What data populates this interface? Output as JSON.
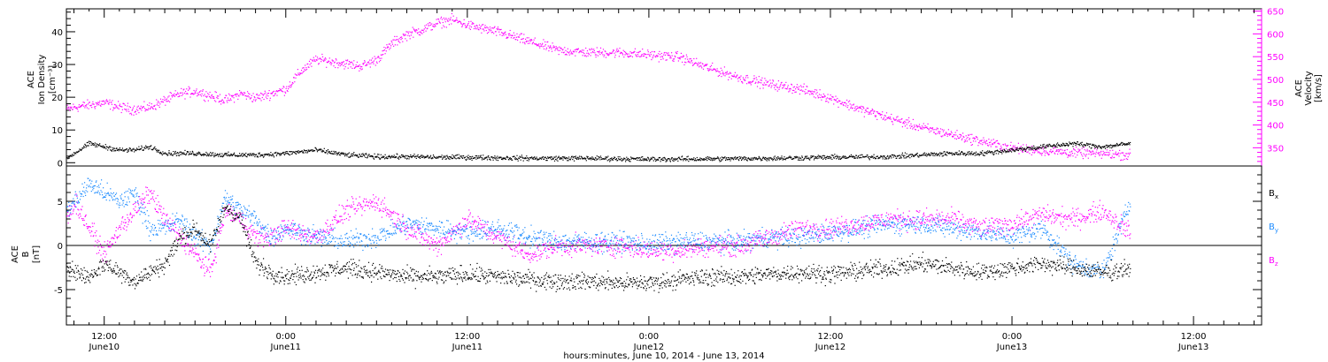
{
  "figure": {
    "xlabel": "hours:minutes, June 10, 2014 - June 13, 2014",
    "x_ticks": [
      {
        "time": "12:00",
        "date": "June10",
        "hours": 12
      },
      {
        "time": "0:00",
        "date": "June11",
        "hours": 24
      },
      {
        "time": "12:00",
        "date": "June11",
        "hours": 36
      },
      {
        "time": "0:00",
        "date": "June12",
        "hours": 48
      },
      {
        "time": "12:00",
        "date": "June12",
        "hours": 60
      },
      {
        "time": "0:00",
        "date": "June13",
        "hours": 72
      },
      {
        "time": "12:00",
        "date": "June13",
        "hours": 84
      }
    ],
    "x_range_hours_since_june10_0000": [
      9.5,
      88.5
    ],
    "data_end_hours": 79.8,
    "colors": {
      "black": "#000000",
      "magenta": "#ff00ff",
      "blue": "#1e8cff"
    }
  },
  "chart_data": [
    {
      "type": "scatter",
      "title": "",
      "ylabel_left": [
        "ACE",
        "Ion Density",
        "[cm⁻³]"
      ],
      "ylabel_right": [
        "ACE",
        "Velocity",
        "[km/s]"
      ],
      "ylim_left": [
        -1,
        47
      ],
      "ylim_right": [
        310,
        655
      ],
      "y_ticks_left": [
        "0",
        "10",
        "20",
        "30",
        "40"
      ],
      "y_ticks_right": [
        "350",
        "400",
        "450",
        "500",
        "550",
        "600",
        "650"
      ],
      "series": [
        {
          "axis": "left",
          "color": "#000000",
          "x": [
            9.5,
            10,
            11,
            12,
            13,
            14,
            15,
            16,
            18,
            20,
            22,
            24,
            26,
            28,
            30,
            32,
            34,
            36,
            40,
            44,
            48,
            52,
            56,
            60,
            64,
            66,
            68,
            70,
            72,
            74,
            76,
            78,
            79.8
          ],
          "y": [
            1.5,
            3,
            6,
            5,
            4,
            4,
            5,
            3,
            3,
            2.5,
            2.5,
            3,
            4,
            2.5,
            2,
            2,
            1.8,
            1.8,
            1.5,
            1.5,
            1.2,
            1.3,
            1.5,
            1.8,
            2,
            2.5,
            3,
            3,
            4,
            5,
            6,
            5,
            6
          ]
        },
        {
          "axis": "right",
          "color": "#ff00ff",
          "x": [
            9.5,
            10,
            11,
            12,
            13,
            14,
            15,
            16,
            17,
            18,
            19,
            20,
            21,
            22,
            23,
            24,
            25,
            26,
            27,
            28,
            29,
            30,
            31,
            32,
            33,
            34,
            35,
            36,
            38,
            40,
            42,
            44,
            46,
            48,
            50,
            52,
            54,
            56,
            58,
            60,
            62,
            64,
            66,
            68,
            70,
            72,
            74,
            76,
            78,
            79.8
          ],
          "y": [
            435,
            440,
            445,
            450,
            440,
            435,
            440,
            455,
            470,
            475,
            465,
            455,
            470,
            460,
            470,
            480,
            520,
            545,
            540,
            535,
            530,
            545,
            580,
            600,
            610,
            625,
            632,
            620,
            605,
            585,
            565,
            560,
            560,
            555,
            550,
            525,
            505,
            490,
            480,
            460,
            435,
            415,
            395,
            380,
            365,
            350,
            345,
            340,
            338,
            335
          ]
        }
      ]
    },
    {
      "type": "scatter",
      "title": "",
      "ylabel_left": [
        "ACE",
        "B",
        "[nT]"
      ],
      "legend": [
        "Bx",
        "By",
        "Bz"
      ],
      "legend_placement": "right",
      "ylim": [
        -9,
        9
      ],
      "y_ticks": [
        "-5",
        "0",
        "5"
      ],
      "zero_line": true,
      "series": [
        {
          "name": "Bx",
          "color": "#000000",
          "x": [
            9.5,
            10,
            11,
            12,
            13,
            14,
            15,
            16,
            17,
            18,
            19,
            20,
            21,
            22,
            23,
            24,
            26,
            28,
            30,
            32,
            34,
            36,
            38,
            40,
            42,
            44,
            46,
            48,
            50,
            52,
            54,
            56,
            58,
            60,
            62,
            64,
            66,
            68,
            70,
            72,
            74,
            76,
            78,
            79.8
          ],
          "y": [
            -2,
            -3,
            -3.5,
            -2,
            -3,
            -4,
            -3,
            -2,
            1,
            2,
            0,
            4.5,
            3,
            -2,
            -3,
            -3.5,
            -3,
            -2.5,
            -3,
            -3.5,
            -3.5,
            -3.2,
            -3.5,
            -3.8,
            -4,
            -4,
            -4.2,
            -4.2,
            -3.8,
            -3.5,
            -3.5,
            -3.2,
            -3,
            -3.2,
            -2.8,
            -2.5,
            -2,
            -2.5,
            -3,
            -2.5,
            -2,
            -2.5,
            -3,
            -2.5
          ]
        },
        {
          "name": "By",
          "color": "#1e8cff",
          "x": [
            9.5,
            10,
            11,
            12,
            13,
            14,
            15,
            16,
            17,
            18,
            19,
            20,
            21,
            22,
            23,
            24,
            26,
            28,
            30,
            32,
            34,
            36,
            38,
            40,
            42,
            44,
            46,
            48,
            50,
            52,
            54,
            56,
            58,
            60,
            62,
            64,
            66,
            68,
            70,
            72,
            74,
            76,
            78,
            79.8
          ],
          "y": [
            4,
            5,
            7,
            6,
            5,
            6,
            2,
            2,
            3,
            1,
            0,
            5.5,
            4,
            3,
            1,
            2,
            1,
            0.5,
            1,
            2.5,
            2,
            1.5,
            2,
            1,
            0.5,
            0.5,
            0.5,
            0.2,
            0.5,
            0.5,
            0.5,
            1,
            1,
            1.5,
            2,
            2.5,
            2.5,
            2,
            1.5,
            1,
            2,
            -2,
            -3,
            5
          ]
        },
        {
          "name": "Bz",
          "color": "#ff00ff",
          "x": [
            9.5,
            10,
            11,
            12,
            13,
            14,
            15,
            16,
            17,
            18,
            19,
            20,
            21,
            22,
            23,
            24,
            26,
            28,
            30,
            32,
            34,
            36,
            38,
            40,
            42,
            44,
            46,
            48,
            50,
            52,
            54,
            56,
            58,
            60,
            62,
            64,
            66,
            68,
            70,
            72,
            74,
            76,
            78,
            79.8
          ],
          "y": [
            3,
            5,
            2,
            -1,
            2,
            4,
            6,
            3,
            1,
            -1,
            -3,
            4,
            3,
            1,
            1,
            2,
            1,
            4,
            5,
            2,
            0,
            3,
            1,
            -1,
            0,
            0,
            0,
            -0.5,
            -0.5,
            0,
            0,
            1,
            2,
            2,
            2.5,
            3,
            3,
            3,
            2,
            2.5,
            3.5,
            3,
            4,
            1.5
          ]
        }
      ]
    }
  ]
}
